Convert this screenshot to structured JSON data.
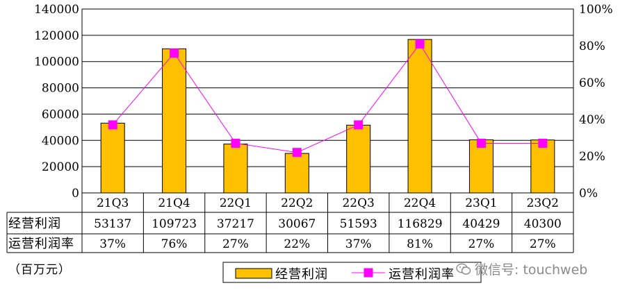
{
  "chart_data": {
    "type": "bar",
    "categories": [
      "21Q3",
      "21Q4",
      "22Q1",
      "22Q2",
      "22Q3",
      "22Q4",
      "23Q1",
      "23Q2"
    ],
    "series": [
      {
        "name": "经营利润",
        "kind": "bar",
        "axis": "left",
        "color": "#FFC000",
        "values": [
          53137,
          109723,
          37217,
          30067,
          51593,
          116829,
          40429,
          40300
        ]
      },
      {
        "name": "运营利润率",
        "kind": "line",
        "axis": "right",
        "color": "#FF00FF",
        "values": [
          37,
          76,
          27,
          22,
          37,
          81,
          27,
          27
        ]
      }
    ],
    "ylim": [
      0,
      140000
    ],
    "y_ticks": [
      "0",
      "20000",
      "40000",
      "60000",
      "80000",
      "100000",
      "120000",
      "140000"
    ],
    "y2lim": [
      0,
      100
    ],
    "y2_ticks": [
      "0%",
      "20%",
      "40%",
      "60%",
      "80%",
      "100%"
    ],
    "grid": true,
    "legend_position": "bottom",
    "table": {
      "rows": [
        {
          "label": "经营利润",
          "cells": [
            "53137",
            "109723",
            "37217",
            "30067",
            "51593",
            "116829",
            "40429",
            "40300"
          ]
        },
        {
          "label": "运营利润率",
          "cells": [
            "37%",
            "76%",
            "27%",
            "22%",
            "37%",
            "81%",
            "27%",
            "27%"
          ]
        }
      ]
    },
    "unit_note": "（百万元）"
  },
  "watermark": {
    "text": "微信号: touchweb"
  }
}
